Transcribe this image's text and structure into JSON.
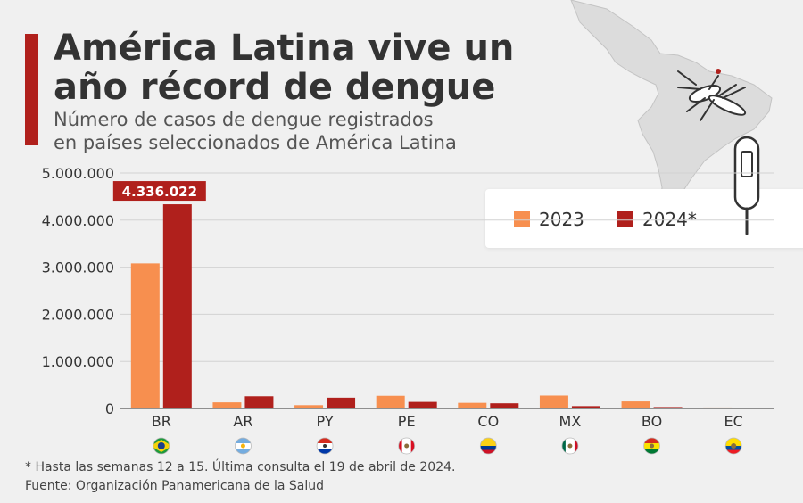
{
  "header": {
    "title_line1": "América Latina vive un",
    "title_line2": "año récord de dengue",
    "subtitle_line1": "Número de casos de dengue registrados",
    "subtitle_line2": "en países seleccionados de América Latina"
  },
  "footer": {
    "footnote": "* Hasta las semanas 12 a 15. Última consulta el 19 de abril de 2024.",
    "source": "Fuente: Organización Panamericana de la Salud"
  },
  "colors": {
    "accent": "#b0201c",
    "series_2023": "#f78f4f",
    "series_2024": "#b0201c",
    "grid": "#d2d2d2",
    "axis_text": "#333333"
  },
  "chart_data": {
    "type": "bar",
    "title": "Número de casos de dengue registrados en países seleccionados de América Latina",
    "xlabel": "",
    "ylabel": "",
    "ylim": [
      0,
      5000000
    ],
    "yticks": [
      0,
      1000000,
      2000000,
      3000000,
      4000000,
      5000000
    ],
    "ytick_labels": [
      "0",
      "1.000.000",
      "2.000.000",
      "3.000.000",
      "4.000.000",
      "5.000.000"
    ],
    "grid": true,
    "legend_position": "top-right",
    "categories": [
      "BR",
      "AR",
      "PY",
      "PE",
      "CO",
      "MX",
      "BO",
      "EC"
    ],
    "flags": [
      "brazil-flag",
      "argentina-flag",
      "paraguay-flag",
      "peru-flag",
      "colombia-flag",
      "mexico-flag",
      "bolivia-flag",
      "ecuador-flag"
    ],
    "series": [
      {
        "name": "2023",
        "color": "#f78f4f",
        "values": [
          3080000,
          130000,
          70000,
          270000,
          120000,
          275000,
          150000,
          20000
        ]
      },
      {
        "name": "2024*",
        "color": "#b0201c",
        "values": [
          4336022,
          260000,
          230000,
          140000,
          110000,
          50000,
          30000,
          12000
        ]
      }
    ],
    "annotations": [
      {
        "category": "BR",
        "series": "2024*",
        "text": "4.336.022"
      }
    ]
  }
}
